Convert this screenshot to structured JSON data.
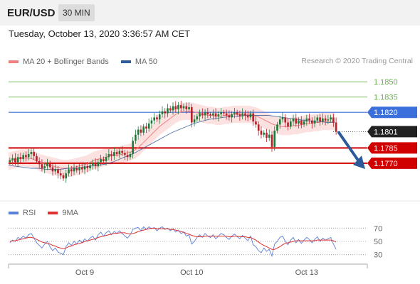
{
  "header": {
    "symbol": "EUR/USD",
    "timeframe": "30 MIN",
    "datetime": "Tuesday, October 13, 2020 3:36:57 AM CET"
  },
  "legend": {
    "ma20_label": "MA 20 + Bollinger Bands",
    "ma50_label": "MA 50",
    "ma20_color": "#f08080",
    "ma50_color": "#2c5a9a",
    "credit": "Research © 2020 Trading Central"
  },
  "rsi_legend": {
    "rsi_label": "RSI",
    "ma_label": "9MA",
    "rsi_color": "#5b7fd6",
    "ma_color": "#e03030"
  },
  "chart_data": {
    "type": "candlestick",
    "ylim": [
      1.1735,
      1.1862
    ],
    "x_labels": [
      "Oct 9",
      "Oct 10",
      "Oct 13"
    ],
    "levels": [
      {
        "value": 1.185,
        "label": "1.1850",
        "style": "target",
        "color": "#6ab04c"
      },
      {
        "value": 1.1835,
        "label": "1.1835",
        "style": "target",
        "color": "#6ab04c"
      },
      {
        "value": 1.182,
        "label": "1.1820",
        "style": "pivot",
        "color": "#3b6fdc"
      },
      {
        "value": 1.1801,
        "label": "1.1801",
        "style": "last",
        "color": "#222222"
      },
      {
        "value": 1.1785,
        "label": "1.1785",
        "style": "support",
        "color": "#d10000"
      },
      {
        "value": 1.177,
        "label": "1.1770",
        "style": "support",
        "color": "#d10000"
      }
    ],
    "arrow": {
      "from": 1.18,
      "to": 1.1767,
      "direction": "down",
      "color": "#2c5a9a"
    },
    "closes": [
      1.1773,
      1.1775,
      1.1771,
      1.1776,
      1.1774,
      1.1778,
      1.1776,
      1.1779,
      1.1781,
      1.1777,
      1.1772,
      1.1769,
      1.1765,
      1.1767,
      1.177,
      1.1766,
      1.1762,
      1.1764,
      1.176,
      1.1758,
      1.1755,
      1.176,
      1.1764,
      1.1762,
      1.1765,
      1.1763,
      1.1766,
      1.1764,
      1.1767,
      1.1765,
      1.1768,
      1.177,
      1.1767,
      1.1771,
      1.1774,
      1.1772,
      1.1776,
      1.1779,
      1.1777,
      1.1781,
      1.1779,
      1.1782,
      1.178,
      1.1778,
      1.1776,
      1.1779,
      1.1792,
      1.1798,
      1.1803,
      1.18,
      1.1806,
      1.1804,
      1.1809,
      1.1812,
      1.1815,
      1.1813,
      1.1818,
      1.1821,
      1.1819,
      1.1824,
      1.1822,
      1.1826,
      1.1823,
      1.1827,
      1.1824,
      1.1826,
      1.1823,
      1.1825,
      1.181,
      1.1813,
      1.1816,
      1.1819,
      1.1817,
      1.182,
      1.1818,
      1.1817,
      1.1819,
      1.1816,
      1.1818,
      1.182,
      1.1819,
      1.1817,
      1.1815,
      1.1818,
      1.182,
      1.1818,
      1.1816,
      1.1819,
      1.1817,
      1.1815,
      1.1819,
      1.1811,
      1.1808,
      1.1802,
      1.1798,
      1.18,
      1.1795,
      1.1798,
      1.1786,
      1.1802,
      1.1808,
      1.1813,
      1.1815,
      1.181,
      1.1806,
      1.1811,
      1.1814,
      1.1809,
      1.1812,
      1.1808,
      1.1811,
      1.1814,
      1.1812,
      1.1809,
      1.1812,
      1.1815,
      1.1811,
      1.1814,
      1.1812,
      1.1813,
      1.1815,
      1.181,
      1.1801
    ],
    "ma20": [
      1.1772,
      1.1773,
      1.1774,
      1.1775,
      1.1775,
      1.1775,
      1.1774,
      1.1772,
      1.177,
      1.1769,
      1.1768,
      1.1767,
      1.1766,
      1.1765,
      1.1765,
      1.1765,
      1.1766,
      1.1767,
      1.1768,
      1.1769,
      1.1771,
      1.1773,
      1.1774,
      1.1775,
      1.1776,
      1.1777,
      1.1778,
      1.1778,
      1.1779,
      1.178,
      1.1781,
      1.1783,
      1.1786,
      1.179,
      1.1794,
      1.1798,
      1.1802,
      1.1806,
      1.1809,
      1.1812,
      1.1815,
      1.1818,
      1.182,
      1.1821,
      1.1821,
      1.1821,
      1.182,
      1.1819,
      1.1818,
      1.1817,
      1.1817,
      1.1816,
      1.1816,
      1.1817,
      1.1817,
      1.1818,
      1.1818,
      1.1818,
      1.1818,
      1.1818,
      1.1817,
      1.1816,
      1.1814,
      1.1812,
      1.181,
      1.1808,
      1.1807,
      1.1806,
      1.1806,
      1.1806,
      1.1807,
      1.1807,
      1.1808,
      1.1809,
      1.1809,
      1.181,
      1.181,
      1.1811,
      1.1811,
      1.1811,
      1.1811
    ],
    "ma50": [
      1.1768,
      1.1767,
      1.1766,
      1.1765,
      1.1765,
      1.1764,
      1.1764,
      1.1764,
      1.1765,
      1.1765,
      1.1766,
      1.1767,
      1.1768,
      1.1769,
      1.1771,
      1.1774,
      1.1777,
      1.178,
      1.1784,
      1.1788,
      1.1792,
      1.1796,
      1.18,
      1.1803,
      1.1806,
      1.1809,
      1.1811,
      1.1813,
      1.1814,
      1.1815,
      1.1816,
      1.1816,
      1.1817,
      1.1817,
      1.1817,
      1.1817,
      1.1816,
      1.1815,
      1.1814,
      1.1813,
      1.1812,
      1.1811,
      1.1811,
      1.181,
      1.181
    ],
    "rsi": {
      "ylim": [
        20,
        80
      ],
      "levels": [
        70,
        50,
        30
      ],
      "rsi": [
        48,
        52,
        50,
        56,
        54,
        58,
        55,
        60,
        62,
        55,
        48,
        44,
        40,
        46,
        50,
        42,
        36,
        40,
        34,
        32,
        30,
        42,
        48,
        44,
        50,
        46,
        52,
        48,
        54,
        50,
        55,
        58,
        52,
        60,
        64,
        58,
        63,
        66,
        60,
        65,
        62,
        66,
        62,
        58,
        55,
        60,
        68,
        70,
        71,
        66,
        72,
        68,
        72,
        69,
        71,
        66,
        70,
        72,
        68,
        70,
        66,
        69,
        64,
        67,
        62,
        64,
        58,
        60,
        46,
        50,
        56,
        60,
        56,
        62,
        58,
        56,
        60,
        54,
        58,
        62,
        60,
        56,
        53,
        58,
        61,
        57,
        54,
        59,
        55,
        51,
        58,
        45,
        42,
        36,
        33,
        40,
        35,
        38,
        28,
        46,
        50,
        56,
        58,
        50,
        45,
        52,
        56,
        48,
        53,
        47,
        52,
        56,
        53,
        48,
        53,
        57,
        50,
        55,
        52,
        54,
        56,
        46,
        38
      ],
      "ma": [
        50,
        51,
        51,
        52,
        53,
        54,
        55,
        56,
        56,
        55,
        53,
        51,
        49,
        48,
        47,
        46,
        44,
        43,
        41,
        40,
        39,
        40,
        42,
        43,
        45,
        46,
        47,
        48,
        50,
        51,
        52,
        53,
        54,
        56,
        57,
        58,
        59,
        60,
        61,
        62,
        62,
        63,
        63,
        63,
        62,
        61,
        62,
        63,
        65,
        66,
        67,
        68,
        69,
        70,
        70,
        69,
        69,
        69,
        69,
        69,
        68,
        68,
        67,
        66,
        65,
        64,
        62,
        61,
        59,
        58,
        57,
        57,
        57,
        58,
        58,
        58,
        58,
        58,
        58,
        58,
        58,
        58,
        57,
        57,
        58,
        58,
        57,
        57,
        57,
        56,
        56,
        54,
        52,
        49,
        46,
        44,
        42,
        40,
        38,
        38,
        40,
        42,
        45,
        47,
        48,
        49,
        50,
        51,
        51,
        51,
        51,
        51,
        51,
        51,
        51,
        52,
        52,
        52,
        52,
        52,
        52,
        51,
        49
      ]
    }
  }
}
